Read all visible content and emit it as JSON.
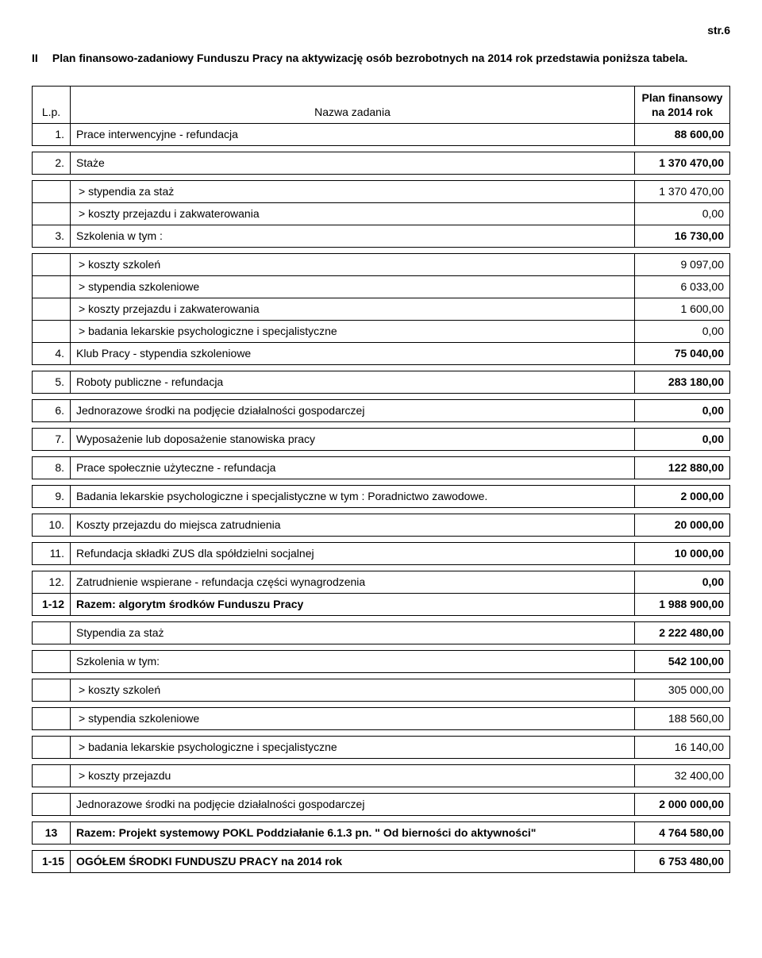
{
  "page_number": "str.6",
  "heading_roman": "II",
  "heading_title": "Plan finansowo-zadaniowy Funduszu Pracy  na aktywizację osób bezrobotnych na 2014 rok  przedstawia poniższa  tabela.",
  "col_lp": "L.p.",
  "col_name": "Nazwa zadania",
  "col_val_l1": "Plan finansowy",
  "col_val_l2": "na 2014 rok",
  "r1_lp": "1.",
  "r1_name": "Prace interwencyjne - refundacja",
  "r1_val": "88 600,00",
  "r2_lp": "2.",
  "r2_name": "Staże",
  "r2_val": "1 370 470,00",
  "r2a_name": "> stypendia za staż",
  "r2a_val": "1 370 470,00",
  "r2b_name": "> koszty przejazdu  i zakwaterowania",
  "r2b_val": "0,00",
  "r3_lp": "3.",
  "r3_name": "Szkolenia w tym :",
  "r3_val": "16 730,00",
  "r3a_name": "> koszty szkoleń",
  "r3a_val": "9 097,00",
  "r3b_name": "> stypendia szkoleniowe",
  "r3b_val": "6 033,00",
  "r3c_name": "> koszty przejazdu i zakwaterowania",
  "r3c_val": "1 600,00",
  "r3d_name": "> badania lekarskie psychologiczne i specjalistyczne",
  "r3d_val": "0,00",
  "r4_lp": "4.",
  "r4_name": "Klub Pracy -  stypendia szkoleniowe",
  "r4_val": "75 040,00",
  "r5_lp": "5.",
  "r5_name": "Roboty publiczne - refundacja",
  "r5_val": "283 180,00",
  "r6_lp": "6.",
  "r6_name": "Jednorazowe środki na podjęcie działalności gospodarczej",
  "r6_val": "0,00",
  "r7_lp": "7.",
  "r7_name": "Wyposażenie  lub  doposażenie stanowiska pracy",
  "r7_val": "0,00",
  "r8_lp": "8.",
  "r8_name": "Prace społecznie użyteczne - refundacja",
  "r8_val": "122 880,00",
  "r9_lp": "9.",
  "r9_name": "Badania lekarskie psychologiczne i specjalistyczne w tym : Poradnictwo zawodowe.",
  "r9_val": "2 000,00",
  "r10_lp": "10.",
  "r10_name": "Koszty przejazdu  do miejsca zatrudnienia",
  "r10_val": "20 000,00",
  "r11_lp": "11.",
  "r11_name": "Refundacja składki  ZUS dla spółdzielni socjalnej",
  "r11_val": "10 000,00",
  "r12_lp": "12.",
  "r12_name": "Zatrudnienie wspierane - refundacja części wynagrodzenia",
  "r12_val": "0,00",
  "sum1_lp": "1-12",
  "sum1_name": "Razem: algorytm środków Funduszu Pracy",
  "sum1_val": "1 988 900,00",
  "s2_name": "Stypendia za staż",
  "s2_val": "2 222 480,00",
  "s3_name": "Szkolenia w tym:",
  "s3_val": "542 100,00",
  "s3a_name": "> koszty szkoleń",
  "s3a_val": "305 000,00",
  "s3b_name": "> stypendia szkoleniowe",
  "s3b_val": "188 560,00",
  "s3c_name": "> badania lekarskie psychologiczne i specjalistyczne",
  "s3c_val": "16 140,00",
  "s3d_name": "> koszty przejazdu",
  "s3d_val": "32 400,00",
  "s4_name": "Jednorazowe środki na podjęcie działalności gospodarczej",
  "s4_val": "2 000 000,00",
  "r13_lp": "13",
  "r13_name": "Razem: Projekt systemowy POKL  Poddziałanie 6.1.3  pn. \" Od bierności do aktywności\"",
  "r13_val": "4 764 580,00",
  "total_lp": "1-15",
  "total_name": "OGÓŁEM   ŚRODKI FUNDUSZU PRACY  na 2014 rok",
  "total_val": "6 753 480,00"
}
